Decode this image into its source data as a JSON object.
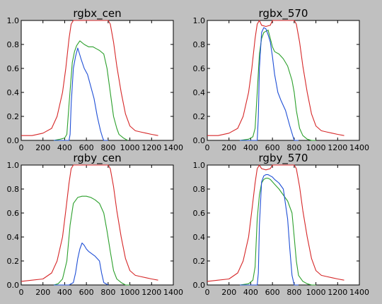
{
  "chart_data": [
    {
      "type": "line",
      "title": "rgbx_cen",
      "xlim": [
        0,
        1400
      ],
      "ylim": [
        0.0,
        1.0
      ],
      "xticks": [
        "0",
        "200",
        "400",
        "600",
        "800",
        "1000",
        "1200",
        "1400"
      ],
      "yticks": [
        "0.0",
        "0.2",
        "0.4",
        "0.6",
        "0.8",
        "1.0"
      ],
      "series": [
        {
          "color": "#d62728",
          "x": [
            0,
            100,
            200,
            280,
            330,
            380,
            410,
            440,
            460,
            480,
            800,
            820,
            850,
            880,
            920,
            960,
            1000,
            1050,
            1100,
            1150,
            1200,
            1260
          ],
          "y": [
            0.04,
            0.04,
            0.06,
            0.1,
            0.2,
            0.4,
            0.6,
            0.85,
            0.97,
            1.0,
            1.0,
            0.97,
            0.82,
            0.62,
            0.4,
            0.22,
            0.12,
            0.08,
            0.07,
            0.06,
            0.05,
            0.04
          ]
        },
        {
          "color": "#2ca02c",
          "x": [
            300,
            360,
            400,
            420,
            440,
            470,
            490,
            510,
            540,
            580,
            620,
            660,
            700,
            720,
            760,
            790,
            820,
            850,
            880,
            900,
            940,
            980
          ],
          "y": [
            0.0,
            0.01,
            0.02,
            0.05,
            0.3,
            0.65,
            0.74,
            0.79,
            0.83,
            0.8,
            0.78,
            0.78,
            0.76,
            0.75,
            0.72,
            0.6,
            0.4,
            0.2,
            0.1,
            0.05,
            0.02,
            0.0
          ]
        },
        {
          "color": "#1f4fd6",
          "x": [
            300,
            400,
            440,
            450,
            460,
            480,
            500,
            520,
            550,
            580,
            610,
            640,
            670,
            700,
            730,
            750,
            760,
            800
          ],
          "y": [
            0.0,
            0.0,
            0.0,
            0.05,
            0.3,
            0.6,
            0.7,
            0.77,
            0.68,
            0.6,
            0.55,
            0.45,
            0.35,
            0.2,
            0.08,
            0.02,
            0.0,
            0.0
          ]
        }
      ]
    },
    {
      "type": "line",
      "title": "rgbx_570",
      "xlim": [
        0,
        1400
      ],
      "ylim": [
        0.0,
        1.0
      ],
      "xticks": [
        "0",
        "200",
        "400",
        "600",
        "800",
        "1000",
        "1200",
        "1400"
      ],
      "yticks": [
        "0.0",
        "0.2",
        "0.4",
        "0.6",
        "0.8",
        "1.0"
      ],
      "series": [
        {
          "color": "#d62728",
          "x": [
            0,
            100,
            200,
            280,
            330,
            380,
            410,
            440,
            460,
            480,
            500,
            540,
            580,
            600,
            630,
            800,
            820,
            850,
            880,
            920,
            960,
            1000,
            1050,
            1100,
            1150,
            1200,
            1260
          ],
          "y": [
            0.04,
            0.04,
            0.06,
            0.1,
            0.2,
            0.4,
            0.6,
            0.85,
            0.97,
            1.0,
            0.96,
            0.95,
            0.96,
            1.0,
            1.0,
            1.0,
            0.97,
            0.82,
            0.62,
            0.4,
            0.22,
            0.12,
            0.08,
            0.07,
            0.06,
            0.05,
            0.04
          ]
        },
        {
          "color": "#2ca02c",
          "x": [
            300,
            380,
            420,
            440,
            460,
            480,
            500,
            520,
            540,
            560,
            580,
            600,
            620,
            660,
            700,
            740,
            780,
            800,
            820,
            850,
            880,
            920,
            960,
            1000
          ],
          "y": [
            0.0,
            0.01,
            0.03,
            0.1,
            0.4,
            0.72,
            0.85,
            0.9,
            0.91,
            0.92,
            0.85,
            0.78,
            0.74,
            0.72,
            0.68,
            0.62,
            0.5,
            0.4,
            0.25,
            0.1,
            0.04,
            0.01,
            0.0,
            0.0
          ]
        },
        {
          "color": "#1f4fd6",
          "x": [
            300,
            440,
            460,
            470,
            480,
            500,
            520,
            540,
            560,
            580,
            600,
            620,
            650,
            680,
            720,
            760,
            790,
            800,
            840
          ],
          "y": [
            0.0,
            0.0,
            0.0,
            0.2,
            0.6,
            0.9,
            0.94,
            0.93,
            0.88,
            0.82,
            0.7,
            0.55,
            0.4,
            0.33,
            0.25,
            0.12,
            0.03,
            0.0,
            0.0
          ]
        }
      ]
    },
    {
      "type": "line",
      "title": "rgby_cen",
      "xlim": [
        0,
        1400
      ],
      "ylim": [
        0.0,
        1.0
      ],
      "xticks": [
        "0",
        "200",
        "400",
        "600",
        "800",
        "1000",
        "1200",
        "1400"
      ],
      "yticks": [
        "0.0",
        "0.2",
        "0.4",
        "0.6",
        "0.8",
        "1.0"
      ],
      "series": [
        {
          "color": "#d62728",
          "x": [
            0,
            100,
            200,
            280,
            330,
            380,
            410,
            440,
            460,
            480,
            800,
            820,
            850,
            880,
            920,
            960,
            1000,
            1050,
            1100,
            1150,
            1200,
            1260
          ],
          "y": [
            0.03,
            0.04,
            0.05,
            0.1,
            0.2,
            0.4,
            0.62,
            0.85,
            0.97,
            1.0,
            1.0,
            0.97,
            0.82,
            0.62,
            0.4,
            0.22,
            0.12,
            0.08,
            0.07,
            0.06,
            0.05,
            0.04
          ]
        },
        {
          "color": "#2ca02c",
          "x": [
            300,
            340,
            380,
            420,
            450,
            480,
            520,
            560,
            600,
            640,
            680,
            720,
            760,
            790,
            820,
            850,
            880,
            920,
            960,
            1000
          ],
          "y": [
            0.0,
            0.01,
            0.05,
            0.2,
            0.5,
            0.68,
            0.73,
            0.74,
            0.74,
            0.73,
            0.71,
            0.68,
            0.6,
            0.45,
            0.28,
            0.12,
            0.05,
            0.02,
            0.0,
            0.0
          ]
        },
        {
          "color": "#1f4fd6",
          "x": [
            300,
            440,
            480,
            500,
            520,
            540,
            560,
            580,
            600,
            620,
            650,
            680,
            700,
            720,
            740,
            760,
            800
          ],
          "y": [
            0.0,
            0.0,
            0.02,
            0.1,
            0.22,
            0.3,
            0.35,
            0.33,
            0.3,
            0.28,
            0.26,
            0.24,
            0.22,
            0.2,
            0.1,
            0.02,
            0.0
          ]
        }
      ]
    },
    {
      "type": "line",
      "title": "rgby_570",
      "xlim": [
        0,
        1400
      ],
      "ylim": [
        0.0,
        1.0
      ],
      "xticks": [
        "0",
        "200",
        "400",
        "600",
        "800",
        "1000",
        "1200",
        "1400"
      ],
      "yticks": [
        "0.0",
        "0.2",
        "0.4",
        "0.6",
        "0.8",
        "1.0"
      ],
      "series": [
        {
          "color": "#d62728",
          "x": [
            0,
            100,
            200,
            280,
            330,
            380,
            410,
            440,
            460,
            480,
            500,
            540,
            580,
            600,
            630,
            800,
            820,
            850,
            880,
            920,
            960,
            1000,
            1050,
            1100,
            1150,
            1200,
            1260
          ],
          "y": [
            0.03,
            0.04,
            0.05,
            0.1,
            0.2,
            0.4,
            0.62,
            0.85,
            0.97,
            1.0,
            0.97,
            0.96,
            0.97,
            1.0,
            1.0,
            1.0,
            0.97,
            0.82,
            0.62,
            0.4,
            0.22,
            0.12,
            0.08,
            0.07,
            0.06,
            0.05,
            0.04
          ]
        },
        {
          "color": "#2ca02c",
          "x": [
            300,
            380,
            420,
            440,
            460,
            480,
            500,
            520,
            540,
            560,
            580,
            620,
            660,
            700,
            740,
            780,
            800,
            820,
            840,
            880,
            920,
            960,
            1000
          ],
          "y": [
            0.0,
            0.01,
            0.04,
            0.15,
            0.55,
            0.75,
            0.85,
            0.88,
            0.89,
            0.89,
            0.88,
            0.84,
            0.8,
            0.75,
            0.7,
            0.6,
            0.4,
            0.2,
            0.08,
            0.03,
            0.01,
            0.0,
            0.0
          ]
        },
        {
          "color": "#1f4fd6",
          "x": [
            300,
            460,
            470,
            480,
            500,
            520,
            540,
            560,
            580,
            600,
            620,
            660,
            700,
            740,
            760,
            780,
            800,
            840
          ],
          "y": [
            0.0,
            0.0,
            0.1,
            0.5,
            0.86,
            0.91,
            0.92,
            0.92,
            0.91,
            0.9,
            0.88,
            0.85,
            0.8,
            0.55,
            0.3,
            0.08,
            0.0,
            0.0
          ]
        }
      ]
    }
  ]
}
